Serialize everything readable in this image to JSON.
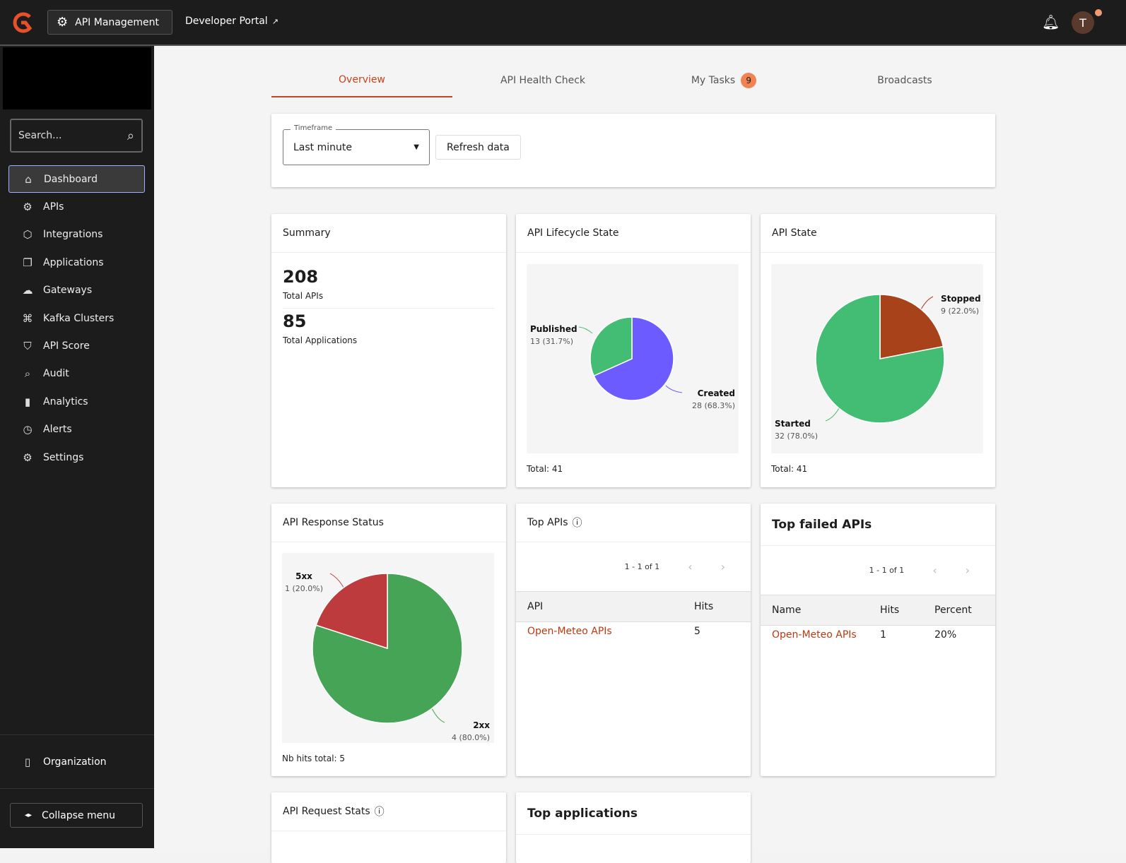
{
  "topbar": {
    "app_button": "API Management",
    "developer_portal": "Developer Portal",
    "avatar_initial": "T"
  },
  "sidebar": {
    "search_placeholder": "Search...",
    "items": [
      {
        "label": "Dashboard",
        "icon": "home-icon"
      },
      {
        "label": "APIs",
        "icon": "api-icon"
      },
      {
        "label": "Integrations",
        "icon": "cube-icon"
      },
      {
        "label": "Applications",
        "icon": "applications-icon"
      },
      {
        "label": "Gateways",
        "icon": "cloud-icon"
      },
      {
        "label": "Kafka Clusters",
        "icon": "kafka-icon"
      },
      {
        "label": "API Score",
        "icon": "shield-icon"
      },
      {
        "label": "Audit",
        "icon": "audit-icon"
      },
      {
        "label": "Analytics",
        "icon": "analytics-icon"
      },
      {
        "label": "Alerts",
        "icon": "alarm-icon"
      },
      {
        "label": "Settings",
        "icon": "gear-icon"
      }
    ],
    "organization": "Organization",
    "collapse": "Collapse menu"
  },
  "tabs": [
    {
      "label": "Overview"
    },
    {
      "label": "API Health Check"
    },
    {
      "label": "My Tasks",
      "badge": "9"
    },
    {
      "label": "Broadcasts"
    }
  ],
  "filters": {
    "timeframe_label": "Timeframe",
    "timeframe_value": "Last minute",
    "refresh": "Refresh data"
  },
  "summary": {
    "title": "Summary",
    "total_apis": "208",
    "total_apis_label": "Total APIs",
    "total_apps": "85",
    "total_apps_label": "Total Applications"
  },
  "chart_data": [
    {
      "type": "pie",
      "title": "API Lifecycle State",
      "total": "Total: 41",
      "slices": [
        {
          "name": "Created",
          "value": 28,
          "label": "28 (68.3%)",
          "color": "#6c5cff"
        },
        {
          "name": "Published",
          "value": 13,
          "label": "13 (31.7%)",
          "color": "#43bd73"
        }
      ]
    },
    {
      "type": "pie",
      "title": "API State",
      "total": "Total: 41",
      "slices": [
        {
          "name": "Stopped",
          "value": 9,
          "label": "9 (22.0%)",
          "color": "#a8421b"
        },
        {
          "name": "Started",
          "value": 32,
          "label": "32 (78.0%)",
          "color": "#43bd73"
        }
      ]
    },
    {
      "type": "pie",
      "title": "API Response Status",
      "total": "Nb hits total: 5",
      "slices": [
        {
          "name": "2xx",
          "value": 4,
          "label": "4 (80.0%)",
          "color": "#46a457"
        },
        {
          "name": "5xx",
          "value": 1,
          "label": "1 (20.0%)",
          "color": "#bd3b3c"
        }
      ]
    }
  ],
  "top_apis": {
    "title": "Top APIs",
    "pager": "1 - 1 of 1",
    "headers": [
      "API",
      "Hits"
    ],
    "rows": [
      [
        "Open-Meteo APIs",
        "5"
      ]
    ]
  },
  "top_failed": {
    "title": "Top failed APIs",
    "pager": "1 - 1 of 1",
    "headers": [
      "Name",
      "Hits",
      "Percent"
    ],
    "rows": [
      [
        "Open-Meteo APIs",
        "1",
        "20%"
      ]
    ]
  },
  "request_stats": {
    "title": "API Request Stats"
  },
  "top_apps": {
    "title": "Top applications"
  }
}
